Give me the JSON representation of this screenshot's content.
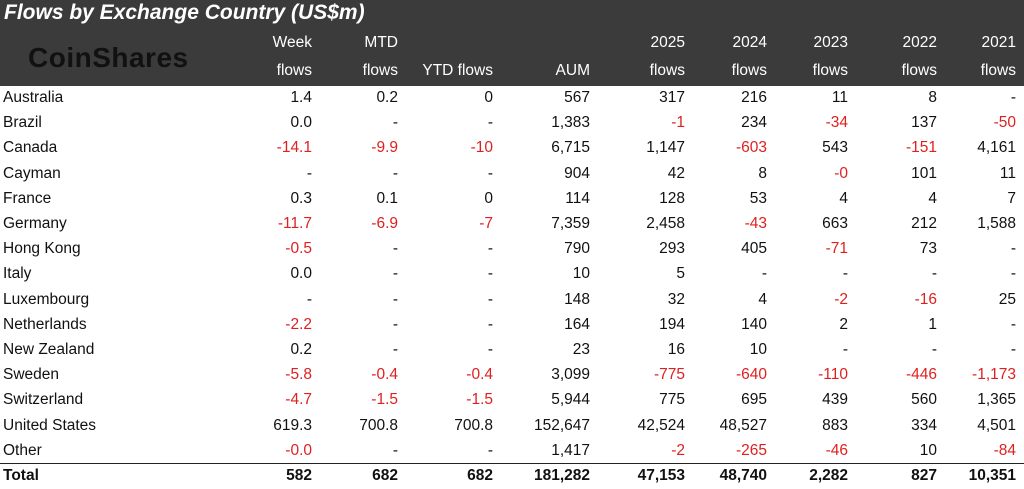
{
  "header": {
    "title": "Flows by Exchange Country (US$m)",
    "logo": "CoinShares"
  },
  "table": {
    "columns": [
      [
        "Week",
        "flows"
      ],
      [
        "MTD",
        "flows"
      ],
      [
        "YTD flows"
      ],
      [
        "AUM"
      ],
      [
        "2025",
        "flows"
      ],
      [
        "2024",
        "flows"
      ],
      [
        "2023",
        "flows"
      ],
      [
        "2022",
        "flows"
      ],
      [
        "2021",
        "flows"
      ]
    ],
    "rows": [
      [
        "Australia",
        "1.4",
        "0.2",
        "0",
        "567",
        "317",
        "216",
        "11",
        "8",
        "-"
      ],
      [
        "Brazil",
        "0.0",
        "-",
        "-",
        "1,383",
        "-1",
        "234",
        "-34",
        "137",
        "-50"
      ],
      [
        "Canada",
        "-14.1",
        "-9.9",
        "-10",
        "6,715",
        "1,147",
        "-603",
        "543",
        "-151",
        "4,161"
      ],
      [
        "Cayman",
        "-",
        "-",
        "-",
        "904",
        "42",
        "8",
        "-0",
        "101",
        "11"
      ],
      [
        "France",
        "0.3",
        "0.1",
        "0",
        "114",
        "128",
        "53",
        "4",
        "4",
        "7"
      ],
      [
        "Germany",
        "-11.7",
        "-6.9",
        "-7",
        "7,359",
        "2,458",
        "-43",
        "663",
        "212",
        "1,588"
      ],
      [
        "Hong Kong",
        "-0.5",
        "-",
        "-",
        "790",
        "293",
        "405",
        "-71",
        "73",
        "-"
      ],
      [
        "Italy",
        "0.0",
        "-",
        "-",
        "10",
        "5",
        "-",
        "-",
        "-",
        "-"
      ],
      [
        "Luxembourg",
        "-",
        "-",
        "-",
        "148",
        "32",
        "4",
        "-2",
        "-16",
        "25"
      ],
      [
        "Netherlands",
        "-2.2",
        "-",
        "-",
        "164",
        "194",
        "140",
        "2",
        "1",
        "-"
      ],
      [
        "New Zealand",
        "0.2",
        "-",
        "-",
        "23",
        "16",
        "10",
        "-",
        "-",
        "-"
      ],
      [
        "Sweden",
        "-5.8",
        "-0.4",
        "-0.4",
        "3,099",
        "-775",
        "-640",
        "-110",
        "-446",
        "-1,173"
      ],
      [
        "Switzerland",
        "-4.7",
        "-1.5",
        "-1.5",
        "5,944",
        "775",
        "695",
        "439",
        "560",
        "1,365"
      ],
      [
        "United States",
        "619.3",
        "700.8",
        "700.8",
        "152,647",
        "42,524",
        "48,527",
        "883",
        "334",
        "4,501"
      ],
      [
        "Other",
        "-0.0",
        "-",
        "-",
        "1,417",
        "-2",
        "-265",
        "-46",
        "10",
        "-84"
      ]
    ],
    "total": [
      "Total",
      "582",
      "682",
      "682",
      "181,282",
      "47,153",
      "48,740",
      "2,282",
      "827",
      "10,351"
    ]
  }
}
